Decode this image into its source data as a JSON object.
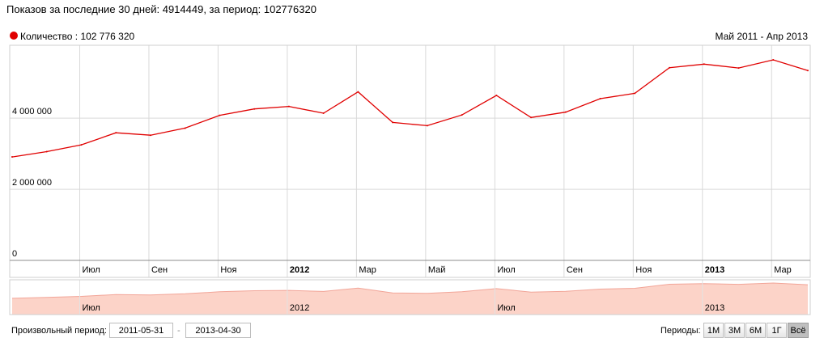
{
  "summary": "Показов за последние 30 дней: 4914449, за период: 102776320",
  "chart_data": {
    "type": "line",
    "legend": "Количество : 102 776 320",
    "range_label": "Май 2011 - Апр 2013",
    "series": [
      {
        "name": "Количество",
        "color": "#e00000",
        "values": [
          2910000,
          3060000,
          3250000,
          3590000,
          3520000,
          3720000,
          4080000,
          4260000,
          4330000,
          4140000,
          4740000,
          3880000,
          3790000,
          4090000,
          4640000,
          4020000,
          4170000,
          4550000,
          4700000,
          5420000,
          5520000,
          5410000,
          5640000,
          5340000
        ]
      }
    ],
    "x": [
      "2011-05",
      "2011-06",
      "2011-07",
      "2011-08",
      "2011-09",
      "2011-10",
      "2011-11",
      "2011-12",
      "2012-01",
      "2012-02",
      "2012-03",
      "2012-04",
      "2012-05",
      "2012-06",
      "2012-07",
      "2012-08",
      "2012-09",
      "2012-10",
      "2012-11",
      "2012-12",
      "2013-01",
      "2013-02",
      "2013-03",
      "2013-04"
    ],
    "ylim": [
      0,
      6050000
    ],
    "y_ticks": [
      {
        "value": 0,
        "label": "0"
      },
      {
        "value": 2000000,
        "label": "2 000 000"
      },
      {
        "value": 4000000,
        "label": "4 000 000"
      }
    ],
    "x_ticks": [
      {
        "x": "2011-07",
        "label": "Июл",
        "bold": false
      },
      {
        "x": "2011-09",
        "label": "Сен",
        "bold": false
      },
      {
        "x": "2011-11",
        "label": "Ноя",
        "bold": false
      },
      {
        "x": "2012-01",
        "label": "2012",
        "bold": true
      },
      {
        "x": "2012-03",
        "label": "Мар",
        "bold": false
      },
      {
        "x": "2012-05",
        "label": "Май",
        "bold": false
      },
      {
        "x": "2012-07",
        "label": "Июл",
        "bold": false
      },
      {
        "x": "2012-09",
        "label": "Сен",
        "bold": false
      },
      {
        "x": "2012-11",
        "label": "Ноя",
        "bold": false
      },
      {
        "x": "2013-01",
        "label": "2013",
        "bold": true
      },
      {
        "x": "2013-03",
        "label": "Мар",
        "bold": false
      }
    ],
    "navigator_ticks": [
      {
        "x": "2011-07",
        "label": "Июл"
      },
      {
        "x": "2012-01",
        "label": "2012"
      },
      {
        "x": "2012-07",
        "label": "Июл"
      },
      {
        "x": "2013-01",
        "label": "2013"
      }
    ],
    "grid": true,
    "legend_position": "top-left",
    "colors": {
      "line": "#e00000",
      "navigator_fill": "#fcd3c8",
      "navigator_line": "#f2a598",
      "grid": "#d9d9d9"
    }
  },
  "controls": {
    "custom_period_label": "Произвольный период:",
    "date_from": "2011-05-31",
    "date_to": "2013-04-30",
    "separator": "-",
    "periods_label": "Периоды:",
    "period_buttons": [
      "1М",
      "3М",
      "6М",
      "1Г",
      "Всё"
    ],
    "active_period": "Всё"
  }
}
